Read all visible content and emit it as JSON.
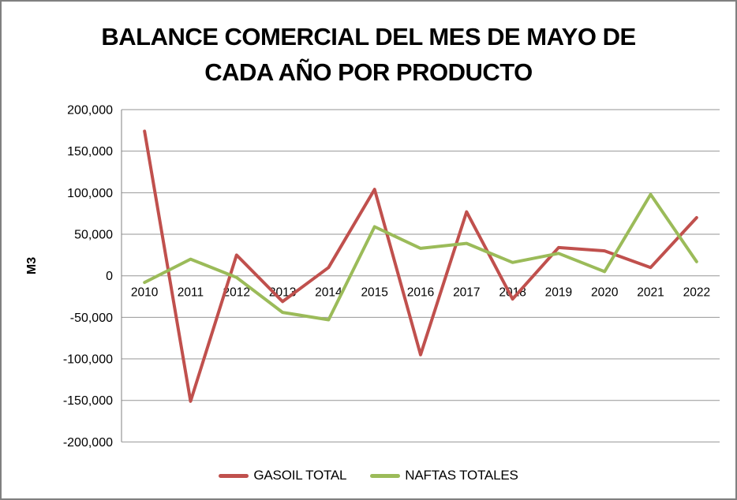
{
  "title": {
    "line1": "BALANCE COMERCIAL DEL MES DE MAYO DE",
    "line2": "CADA AÑO POR PRODUCTO"
  },
  "colors": {
    "gridline": "#969696",
    "axis": "#808080",
    "frame_border": "#808080",
    "text": "#000000"
  },
  "chart_data": {
    "type": "line",
    "title": "BALANCE COMERCIAL DEL MES DE MAYO DE CADA AÑO POR PRODUCTO",
    "xlabel": "",
    "ylabel": "M3",
    "categories": [
      "2010",
      "2011",
      "2012",
      "2013",
      "2014",
      "2015",
      "2016",
      "2017",
      "2018",
      "2019",
      "2020",
      "2021",
      "2022"
    ],
    "series": [
      {
        "name": "GASOIL TOTAL",
        "color": "#C0504D",
        "values": [
          174000,
          -151000,
          25000,
          -31000,
          10000,
          104000,
          -95000,
          77000,
          -28000,
          34000,
          30000,
          10000,
          70000
        ]
      },
      {
        "name": "NAFTAS TOTALES",
        "color": "#9BBB59",
        "values": [
          -8000,
          20000,
          -2000,
          -44000,
          -53000,
          59000,
          33000,
          39000,
          16000,
          27000,
          5000,
          98000,
          17000
        ]
      }
    ],
    "ylim": [
      -200000,
      200000
    ],
    "yticks": [
      200000,
      150000,
      100000,
      50000,
      0,
      -50000,
      -100000,
      -150000,
      -200000
    ],
    "ytick_labels": [
      "200,000",
      "150,000",
      "100,000",
      "50,000",
      "0",
      "-50,000",
      "-100,000",
      "-150,000",
      "-200,000"
    ],
    "grid": "horizontal",
    "legend_position": "bottom"
  }
}
